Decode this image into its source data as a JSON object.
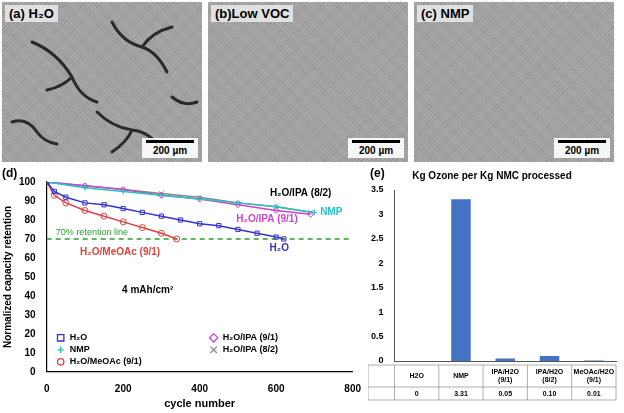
{
  "micrographs": [
    {
      "label": "(a) H₂O",
      "scale_bar": "200 µm"
    },
    {
      "label": "(b)Low VOC",
      "scale_bar": "200 µm"
    },
    {
      "label": "(c) NMP",
      "scale_bar": "200 µm"
    }
  ],
  "chart_data": [
    {
      "type": "line",
      "panel_label": "(d)",
      "x_label": "cycle number",
      "y_label": "Normalized capacity retention",
      "xlim": [
        0,
        800
      ],
      "xticks": [
        0,
        200,
        400,
        600,
        800
      ],
      "ylim": [
        0,
        100
      ],
      "yticks": [
        0,
        10,
        20,
        30,
        40,
        50,
        60,
        70,
        80,
        90,
        100
      ],
      "grid": false,
      "legend": "bottom-left",
      "series": [
        {
          "name": "H₂O",
          "color": "#3333cc",
          "marker": "square",
          "x": [
            0,
            20,
            50,
            100,
            150,
            200,
            250,
            300,
            350,
            400,
            450,
            500,
            550,
            600,
            620
          ],
          "values": [
            100,
            95,
            92,
            89,
            88,
            86,
            84,
            82,
            80,
            78,
            77,
            75,
            73,
            71,
            70
          ]
        },
        {
          "name": "NMP",
          "color": "#22c4c4",
          "marker": "plus",
          "x": [
            0,
            100,
            200,
            300,
            400,
            500,
            600,
            700
          ],
          "values": [
            100,
            97,
            95,
            93,
            91,
            89,
            87,
            84
          ]
        },
        {
          "name": "H₂O/MeOAc (9/1)",
          "color": "#e04040",
          "marker": "circle",
          "x": [
            0,
            20,
            50,
            100,
            150,
            200,
            250,
            300,
            340
          ],
          "values": [
            100,
            93,
            89,
            85,
            82,
            79,
            76,
            73,
            70
          ]
        },
        {
          "name": "H₂O/IPA (9/1)",
          "color": "#cc44cc",
          "marker": "diamond",
          "x": [
            0,
            100,
            200,
            300,
            400,
            500,
            600,
            690
          ],
          "values": [
            100,
            98,
            96,
            93,
            91,
            88,
            85,
            83
          ]
        },
        {
          "name": "H₂O/IPA (8/2)",
          "color": "#888888",
          "marker": "x",
          "x": [
            0,
            100,
            200,
            300,
            400,
            500,
            600,
            690
          ],
          "values": [
            100,
            98,
            96,
            94,
            92,
            89,
            87,
            84
          ]
        }
      ],
      "reference_line": {
        "value": 70,
        "color": "#2ca02c",
        "line_style": "dashed"
      },
      "annotations": [
        {
          "text": "H₂O/IPA (8/2)",
          "color": "#000000"
        },
        {
          "text": "NMP",
          "color": "#22c4c4"
        },
        {
          "text": "H₂O/IPA (9/1)",
          "color": "#cc44cc"
        },
        {
          "text": "H₂O",
          "color": "#3333cc"
        },
        {
          "text": "H₂O/MeOAc (9/1)",
          "color": "#e04040"
        },
        {
          "text": "70% retention line",
          "color": "#2ca02c"
        },
        {
          "text": "4 mAh/cm²",
          "color": "#000000"
        }
      ]
    },
    {
      "type": "bar",
      "panel_label": "(e)",
      "title": "Kg Ozone per Kg NMC processed",
      "categories": [
        "H2O",
        "NMP",
        "IPA/H2O (9/1)",
        "IPA/H2O (8/2)",
        "MeOAc/H2O (9/1)"
      ],
      "values": [
        0,
        3.31,
        0.05,
        0.1,
        0.01
      ],
      "value_labels": [
        "0",
        "3.31",
        "0.05",
        "0.10",
        "0.01"
      ],
      "color": "#4472c4",
      "ylim": [
        0,
        3.5
      ],
      "yticks": [
        0,
        0.5,
        1,
        1.5,
        2,
        2.5,
        3,
        3.5
      ],
      "grid": false,
      "tick_labels": "y"
    }
  ]
}
